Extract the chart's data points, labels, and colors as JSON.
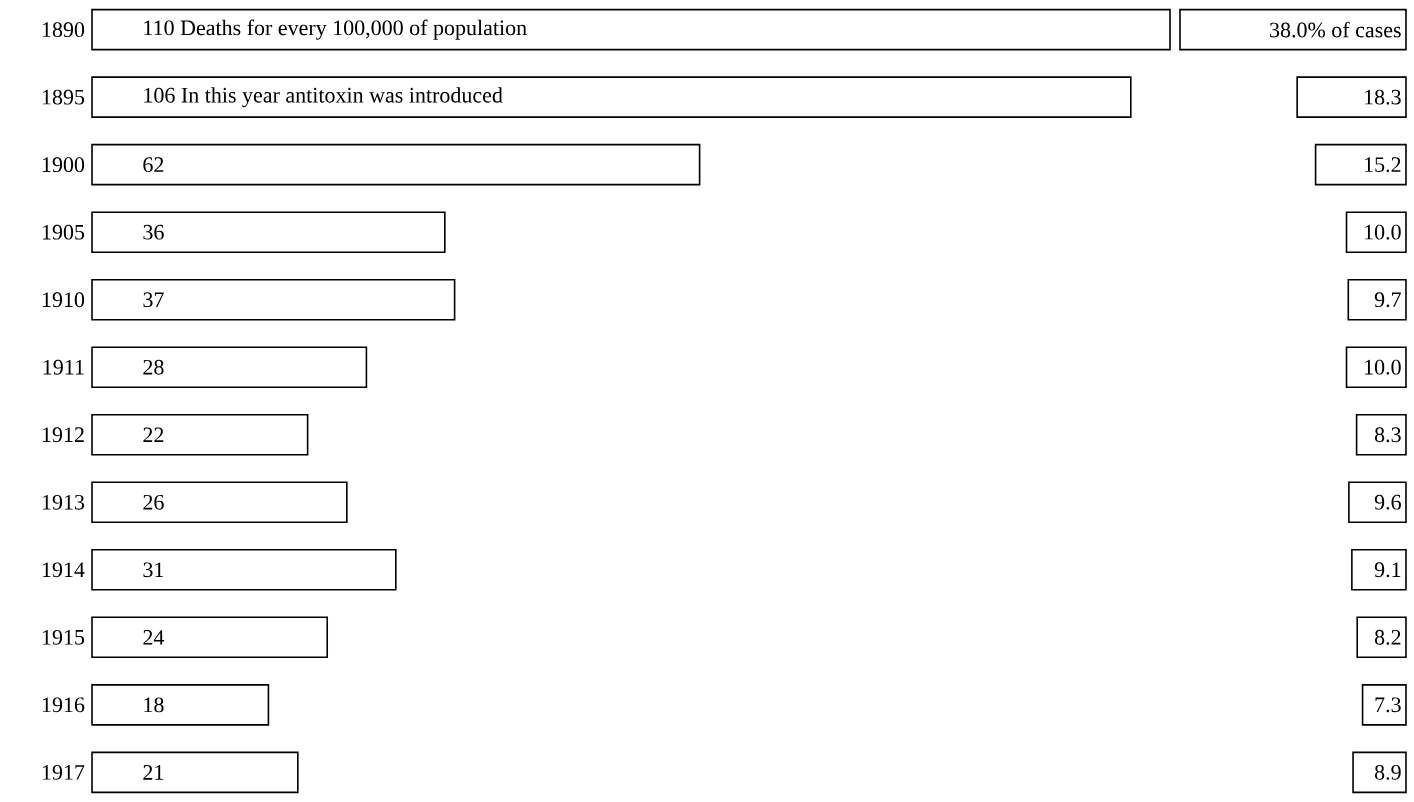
{
  "chart_data": [
    {
      "type": "bar",
      "orientation": "horizontal",
      "categories": [
        "1890",
        "1895",
        "1900",
        "1905",
        "1910",
        "1911",
        "1912",
        "1913",
        "1914",
        "1915",
        "1916",
        "1917"
      ],
      "values": [
        110,
        106,
        62,
        36,
        37,
        28,
        22,
        26,
        31,
        24,
        18,
        21
      ],
      "value_labels": [
        "110 Deaths for every 100,000 of population",
        "106 In this year antitoxin was introduced",
        "62",
        "36",
        "37",
        "28",
        "22",
        "26",
        "31",
        "24",
        "18",
        "21"
      ],
      "color": "#ffffff",
      "xlim": [
        0,
        110
      ],
      "tick_labels": "y"
    },
    {
      "type": "bar",
      "orientation": "horizontal",
      "categories": [
        "1890",
        "1895",
        "1900",
        "1905",
        "1910",
        "1911",
        "1912",
        "1913",
        "1914",
        "1915",
        "1916",
        "1917"
      ],
      "values": [
        38.0,
        18.3,
        15.2,
        10.0,
        9.7,
        10.0,
        8.3,
        9.6,
        9.1,
        8.2,
        7.3,
        8.9
      ],
      "value_labels": [
        "38.0% of cases",
        "18.3",
        "15.2",
        "10.0",
        "9.7",
        "10.0",
        "8.3",
        "9.6",
        "9.1",
        "8.2",
        "7.3",
        "8.9"
      ],
      "color": "#ffffff",
      "xlim": [
        38.0,
        0
      ],
      "tick_labels": false
    }
  ]
}
